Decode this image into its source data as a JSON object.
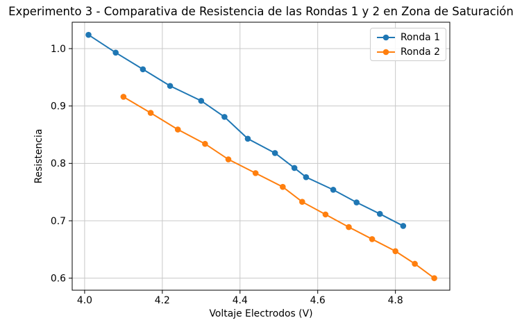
{
  "chart_data": {
    "type": "line",
    "title": "Experimento 3 - Comparativa de Resistencia de las Rondas 1 y 2 en Zona de Saturación",
    "xlabel": "Voltaje Electrodos (V)",
    "ylabel": "Resistencia",
    "xlim": [
      3.968,
      4.94
    ],
    "ylim": [
      0.579,
      1.046
    ],
    "xticks": [
      4.0,
      4.2,
      4.4,
      4.6,
      4.8
    ],
    "xtick_labels": [
      "4.0",
      "4.2",
      "4.4",
      "4.6",
      "4.8"
    ],
    "yticks": [
      0.6,
      0.7,
      0.8,
      0.9,
      1.0
    ],
    "ytick_labels": [
      "0.6",
      "0.7",
      "0.8",
      "0.9",
      "1.0"
    ],
    "grid": true,
    "grid_color": "#c8c8c8",
    "axis_color": "#000000",
    "marker": "o",
    "legend": {
      "position": "upper-right",
      "border_color": "#cccccc"
    },
    "series": [
      {
        "name": "Ronda 1",
        "color": "#1f77b4",
        "x": [
          4.01,
          4.08,
          4.15,
          4.22,
          4.3,
          4.36,
          4.42,
          4.49,
          4.54,
          4.57,
          4.64,
          4.7,
          4.76,
          4.82
        ],
        "y": [
          1.024,
          0.993,
          0.964,
          0.935,
          0.909,
          0.881,
          0.843,
          0.818,
          0.792,
          0.776,
          0.754,
          0.732,
          0.712,
          0.691
        ]
      },
      {
        "name": "Ronda 2",
        "color": "#ff7f0e",
        "x": [
          4.1,
          4.17,
          4.24,
          4.31,
          4.37,
          4.44,
          4.51,
          4.56,
          4.62,
          4.68,
          4.74,
          4.8,
          4.85,
          4.9
        ],
        "y": [
          0.916,
          0.888,
          0.859,
          0.834,
          0.807,
          0.783,
          0.759,
          0.733,
          0.711,
          0.689,
          0.668,
          0.647,
          0.625,
          0.6
        ]
      }
    ]
  }
}
